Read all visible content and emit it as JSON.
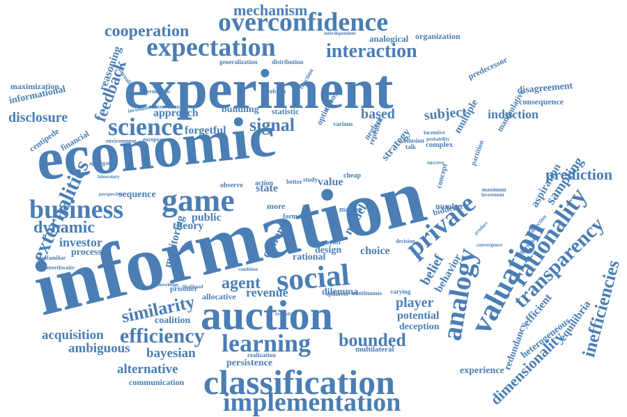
{
  "color": "#4a7eb4",
  "words": [
    "information",
    "economic",
    "experiment",
    "auction",
    "game",
    "social",
    "valuation",
    "analogy",
    "classification",
    "implementation",
    "expectation",
    "overconfidence",
    "business",
    "private",
    "rationality",
    "learning",
    "transparency",
    "science",
    "externalities",
    "mechanism",
    "interaction",
    "cooperation",
    "efficiency",
    "signal",
    "dynamic",
    "similarity",
    "agent",
    "bounded",
    "feedback",
    "prediction",
    "inefficiencies",
    "dimensionality",
    "disclosure",
    "subject",
    "induction",
    "based",
    "acquisition",
    "ambiguous",
    "bayesian",
    "alternative",
    "persistence",
    "communication",
    "revenue",
    "player",
    "potential",
    "deception",
    "belief",
    "behavior",
    "investor",
    "processes",
    "approach",
    "bundling",
    "statistic",
    "forgetful",
    "disagreement",
    "consequence",
    "informational",
    "maximization",
    "reasoning",
    "centipede",
    "financial",
    "sequence",
    "public",
    "theory",
    "monitoring",
    "strategy",
    "sampling",
    "aspiration",
    "efficient",
    "equilibria",
    "heterogeneous",
    "redundancy",
    "experience",
    "model",
    "option",
    "design",
    "choice",
    "state",
    "value",
    "rational",
    "dilemma",
    "coalition",
    "allocative",
    "prisoner",
    "multilateral",
    "realization",
    "varying",
    "analogical",
    "organization",
    "distribution",
    "generalization",
    "predecessor",
    "externality",
    "problem",
    "function",
    "interdependent",
    "deterministic",
    "incumbent",
    "observation",
    "european",
    "environment",
    "aggregation",
    "laboratory",
    "perspective",
    "unfamiliar",
    "satterthwaite",
    "multiple",
    "manipulative",
    "partition",
    "complex",
    "incentive",
    "probability",
    "cheap",
    "payoff",
    "form",
    "observe",
    "action",
    "more",
    "study",
    "better",
    "market",
    "bidder",
    "number",
    "concept",
    "success",
    "maximum",
    "investment",
    "aggregate",
    "detection",
    "product",
    "decision",
    "convergence",
    "spillover",
    "continuous",
    "extensive",
    "knowledge",
    "likelihood",
    "condition",
    "various",
    "choose",
    "optimal",
    "neglect",
    "repeated",
    "collusion",
    "talk"
  ]
}
